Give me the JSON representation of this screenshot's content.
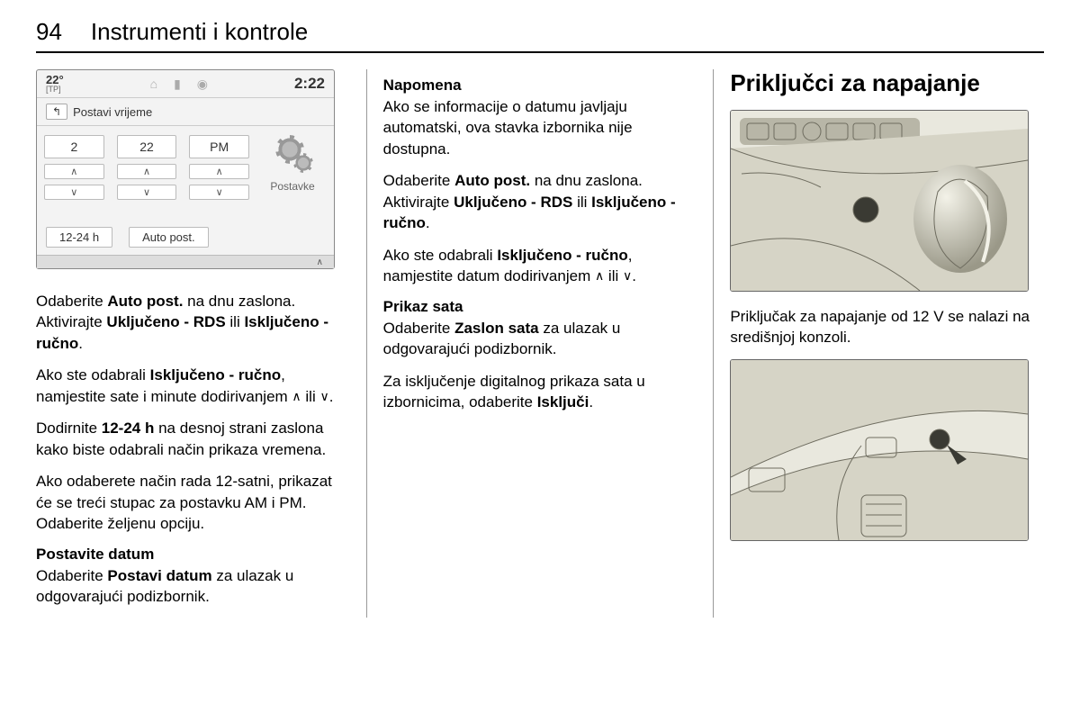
{
  "page_number": "94",
  "chapter_title": "Instrumenti i kontrole",
  "col1": {
    "screen": {
      "temp": "22°",
      "tp_label": "[TP]",
      "status_icons": [
        "⌂",
        "▮",
        "◉"
      ],
      "clock": "2:22",
      "back_arrow": "↰",
      "back_label": "Postavi vrijeme",
      "time_values": [
        "2",
        "22",
        "PM"
      ],
      "up": "∧",
      "down": "∨",
      "settings_label": "Postavke",
      "tab_left": "12-24 h",
      "tab_right": "Auto post.",
      "footer_chev": "∧"
    },
    "p1a": "Odaberite ",
    "p1b": "Auto post.",
    "p1c": " na dnu zaslona. Aktivirajte ",
    "p1d": "Uključeno - RDS",
    "p1e": " ili ",
    "p1f": "Isključeno - ručno",
    "p1g": ".",
    "p2a": "Ako ste odabrali ",
    "p2b": "Isključeno - ručno",
    "p2c": ", namjestite sate i minute dodirivanjem ",
    "p2_up": "∧",
    "p2_mid": " ili ",
    "p2_dn": "∨",
    "p2d": ".",
    "p3a": "Dodirnite ",
    "p3b": "12-24 h",
    "p3c": " na desnoj strani zaslona kako biste odabrali način prikaza vremena.",
    "p4": "Ako odaberete način rada 12-satni, prikazat će se treći stupac za postavku AM i PM. Odaberite željenu opciju.",
    "sub": "Postavite datum",
    "p5a": "Odaberite ",
    "p5b": "Postavi datum",
    "p5c": " za ulazak u odgovarajući podizbornik."
  },
  "col2": {
    "sub1": "Napomena",
    "p1": "Ako se informacije o datumu javljaju automatski, ova stavka izbornika nije dostupna.",
    "p2a": "Odaberite ",
    "p2b": "Auto post.",
    "p2c": " na dnu zaslona. Aktivirajte ",
    "p2d": "Uključeno - RDS",
    "p2e": " ili ",
    "p2f": "Isključeno - ručno",
    "p2g": ".",
    "p3a": "Ako ste odabrali ",
    "p3b": "Isključeno - ručno",
    "p3c": ", namjestite datum dodirivanjem ",
    "p3_up": "∧",
    "p3_mid": " ili ",
    "p3_dn": "∨",
    "p3d": ".",
    "sub2": "Prikaz sata",
    "p4a": "Odaberite ",
    "p4b": "Zaslon sata",
    "p4c": " za ulazak u odgovarajući podizbornik.",
    "p5a": "Za isključenje digitalnog prikaza sata u izbornicima, odaberite ",
    "p5b": "Isključi",
    "p5c": "."
  },
  "col3": {
    "head": "Priključci za napajanje",
    "caption": "Priključak za napajanje od 12 V se nalazi na središnjoj konzoli.",
    "illus_colors": {
      "panel_light": "#e9e8de",
      "panel_mid": "#d6d4c6",
      "panel_dark": "#b8b6a7",
      "line": "#6e6c5f",
      "knob_hl": "#f3f2e8",
      "knob_sh": "#9a9888",
      "socket": "#3a3a33",
      "arrow": "#3a3a33"
    }
  }
}
